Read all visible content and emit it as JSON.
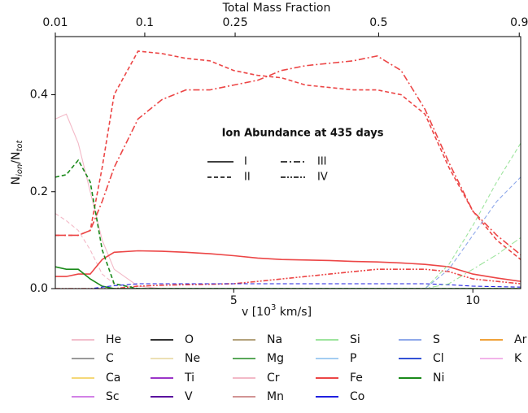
{
  "chart_data": {
    "type": "line",
    "top_axis": {
      "label": "Total Mass Fraction",
      "ticks": [
        {
          "value": 1.27,
          "label": "0.01"
        },
        {
          "value": 3.14,
          "label": "0.1"
        },
        {
          "value": 5.03,
          "label": "0.25"
        },
        {
          "value": 8.03,
          "label": "0.5"
        },
        {
          "value": 10.97,
          "label": "0.9"
        }
      ]
    },
    "xlabel": [
      "v [10",
      "3",
      " km/s]"
    ],
    "ylabel": [
      "N",
      "ion",
      "/N",
      "tot"
    ],
    "xlim": [
      1.27,
      11
    ],
    "xticks": [
      5,
      10
    ],
    "ylim": [
      0,
      0.52
    ],
    "yticks": [
      {
        "value": 0,
        "label": "0.0"
      },
      0.2,
      0.4
    ],
    "x": [
      1.27,
      1.5,
      1.75,
      2,
      2.25,
      2.5,
      3,
      3.5,
      4,
      4.5,
      5,
      5.5,
      6,
      6.5,
      7,
      7.5,
      8,
      8.5,
      9,
      9.5,
      10,
      10.5,
      11
    ],
    "ion_legend": {
      "title": "Ion Abundance at 435 days",
      "styles": [
        {
          "label": "I",
          "dash": "none"
        },
        {
          "label": "II",
          "dash": "5,3"
        },
        {
          "label": "III",
          "dash": "8,3,2,3"
        },
        {
          "label": "IV",
          "dash": "6,2,2,2,2,2"
        }
      ]
    },
    "legend_rows": [
      [
        {
          "name": "He",
          "color": "#f2bfcc"
        },
        {
          "name": "O",
          "color": "#333333"
        },
        {
          "name": "Na",
          "color": "#b3a27c"
        },
        {
          "name": "Si",
          "color": "#9de49d"
        },
        {
          "name": "S",
          "color": "#8fa9ea"
        },
        {
          "name": "Ar",
          "color": "#f0a23a"
        }
      ],
      [
        {
          "name": "C",
          "color": "#9a9a9a"
        },
        {
          "name": "Ne",
          "color": "#ece0b4"
        },
        {
          "name": "Mg",
          "color": "#5aa85a"
        },
        {
          "name": "P",
          "color": "#a3cdf2"
        },
        {
          "name": "Cl",
          "color": "#3352d6"
        },
        {
          "name": "K",
          "color": "#f2b3ea"
        }
      ],
      [
        {
          "name": "Ca",
          "color": "#f5d878"
        },
        {
          "name": "Ti",
          "color": "#9b35c8"
        },
        {
          "name": "Cr",
          "color": "#f3b9c7"
        },
        {
          "name": "Fe",
          "color": "#ec4646"
        },
        {
          "name": "Ni",
          "color": "#1a8a1a"
        }
      ],
      [
        {
          "name": "Sc",
          "color": "#d281e6"
        },
        {
          "name": "V",
          "color": "#5a0c9e"
        },
        {
          "name": "Mn",
          "color": "#d29494"
        },
        {
          "name": "Co",
          "color": "#2020e0"
        }
      ]
    ],
    "series": [
      {
        "element": "Cr",
        "ion": "I",
        "values": [
          0.35,
          0.36,
          0.3,
          0.2,
          0.1,
          0.04,
          0.005,
          0,
          0,
          0,
          0,
          0,
          0,
          0,
          0,
          0,
          0,
          0,
          0,
          0,
          0,
          0,
          0
        ]
      },
      {
        "element": "Cr",
        "ion": "II",
        "values": [
          0.155,
          0.14,
          0.12,
          0.08,
          0.03,
          0.01,
          0,
          0,
          0,
          0,
          0,
          0,
          0,
          0,
          0,
          0,
          0,
          0,
          0,
          0,
          0,
          0,
          0
        ]
      },
      {
        "element": "Fe",
        "ion": "I",
        "values": [
          0.025,
          0.025,
          0.03,
          0.03,
          0.06,
          0.075,
          0.078,
          0.077,
          0.075,
          0.072,
          0.068,
          0.063,
          0.06,
          0.059,
          0.058,
          0.056,
          0.055,
          0.053,
          0.05,
          0.045,
          0.03,
          0.022,
          0.015
        ]
      },
      {
        "element": "Fe",
        "ion": "II",
        "values": [
          0.11,
          0.11,
          0.11,
          0.12,
          0.25,
          0.4,
          0.49,
          0.485,
          0.475,
          0.47,
          0.45,
          0.44,
          0.435,
          0.42,
          0.415,
          0.41,
          0.41,
          0.4,
          0.36,
          0.25,
          0.16,
          0.1,
          0.06
        ]
      },
      {
        "element": "Fe",
        "ion": "III",
        "values": [
          0.11,
          0.11,
          0.11,
          0.12,
          0.18,
          0.25,
          0.35,
          0.39,
          0.41,
          0.41,
          0.42,
          0.43,
          0.45,
          0.46,
          0.465,
          0.47,
          0.48,
          0.45,
          0.37,
          0.26,
          0.16,
          0.11,
          0.07
        ]
      },
      {
        "element": "Fe",
        "ion": "IV",
        "values": [
          0,
          0,
          0,
          0,
          0,
          0,
          0.005,
          0.007,
          0.008,
          0.009,
          0.01,
          0.015,
          0.02,
          0.025,
          0.03,
          0.035,
          0.04,
          0.04,
          0.04,
          0.035,
          0.02,
          0.015,
          0.01
        ]
      },
      {
        "element": "Ni",
        "ion": "I",
        "values": [
          0.045,
          0.04,
          0.04,
          0.02,
          0.005,
          0,
          0,
          0,
          0,
          0,
          0,
          0,
          0,
          0,
          0,
          0,
          0,
          0,
          0,
          0,
          0,
          0,
          0
        ]
      },
      {
        "element": "Ni",
        "ion": "II",
        "values": [
          0.23,
          0.235,
          0.265,
          0.22,
          0.08,
          0.01,
          0,
          0,
          0,
          0,
          0,
          0,
          0,
          0,
          0,
          0,
          0,
          0,
          0,
          0,
          0,
          0,
          0
        ]
      },
      {
        "element": "Co",
        "ion": "II",
        "values": [
          0,
          0,
          0,
          0,
          0.003,
          0.006,
          0.01,
          0.01,
          0.01,
          0.01,
          0.01,
          0.01,
          0.01,
          0.01,
          0.01,
          0.01,
          0.01,
          0.01,
          0.01,
          0.008,
          0.005,
          0.004,
          0.003
        ]
      },
      {
        "element": "Si",
        "ion": "II",
        "values": [
          0,
          0,
          0,
          0,
          0,
          0,
          0,
          0,
          0,
          0,
          0,
          0,
          0,
          0,
          0,
          0,
          0,
          0,
          0,
          0.05,
          0.13,
          0.22,
          0.3
        ]
      },
      {
        "element": "Si",
        "ion": "III",
        "values": [
          0,
          0,
          0,
          0,
          0,
          0,
          0,
          0,
          0,
          0,
          0,
          0,
          0,
          0,
          0,
          0,
          0,
          0,
          0,
          0.01,
          0.04,
          0.07,
          0.105
        ]
      },
      {
        "element": "S",
        "ion": "II",
        "values": [
          0,
          0,
          0,
          0,
          0,
          0,
          0,
          0,
          0,
          0,
          0,
          0,
          0,
          0,
          0,
          0,
          0,
          0,
          0,
          0.04,
          0.11,
          0.18,
          0.23
        ]
      }
    ]
  }
}
